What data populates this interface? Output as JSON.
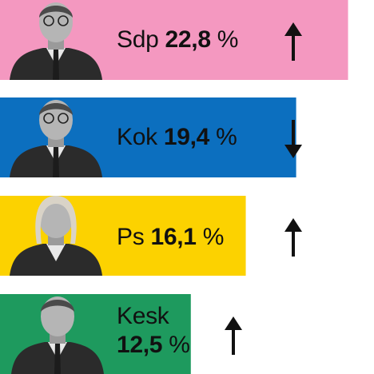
{
  "chart_data": {
    "type": "bar",
    "orientation": "horizontal",
    "xlim": [
      0,
      24.5
    ],
    "grid": false,
    "legend": "none",
    "categories": [
      "Sdp",
      "Kok",
      "Ps",
      "Kesk"
    ],
    "values": [
      22.8,
      19.4,
      16.1,
      12.5
    ],
    "value_labels": [
      "22,8",
      "19,4",
      "16,1",
      "12,5"
    ],
    "unit": "%",
    "trend": [
      "up",
      "down",
      "up",
      "up"
    ],
    "colors": [
      "#f498c0",
      "#0c6fbf",
      "#fcd200",
      "#1e9a5e"
    ],
    "portrait_icons": [
      "portrait-sdp-icon",
      "portrait-kok-icon",
      "portrait-ps-icon",
      "portrait-kesk-icon"
    ]
  }
}
